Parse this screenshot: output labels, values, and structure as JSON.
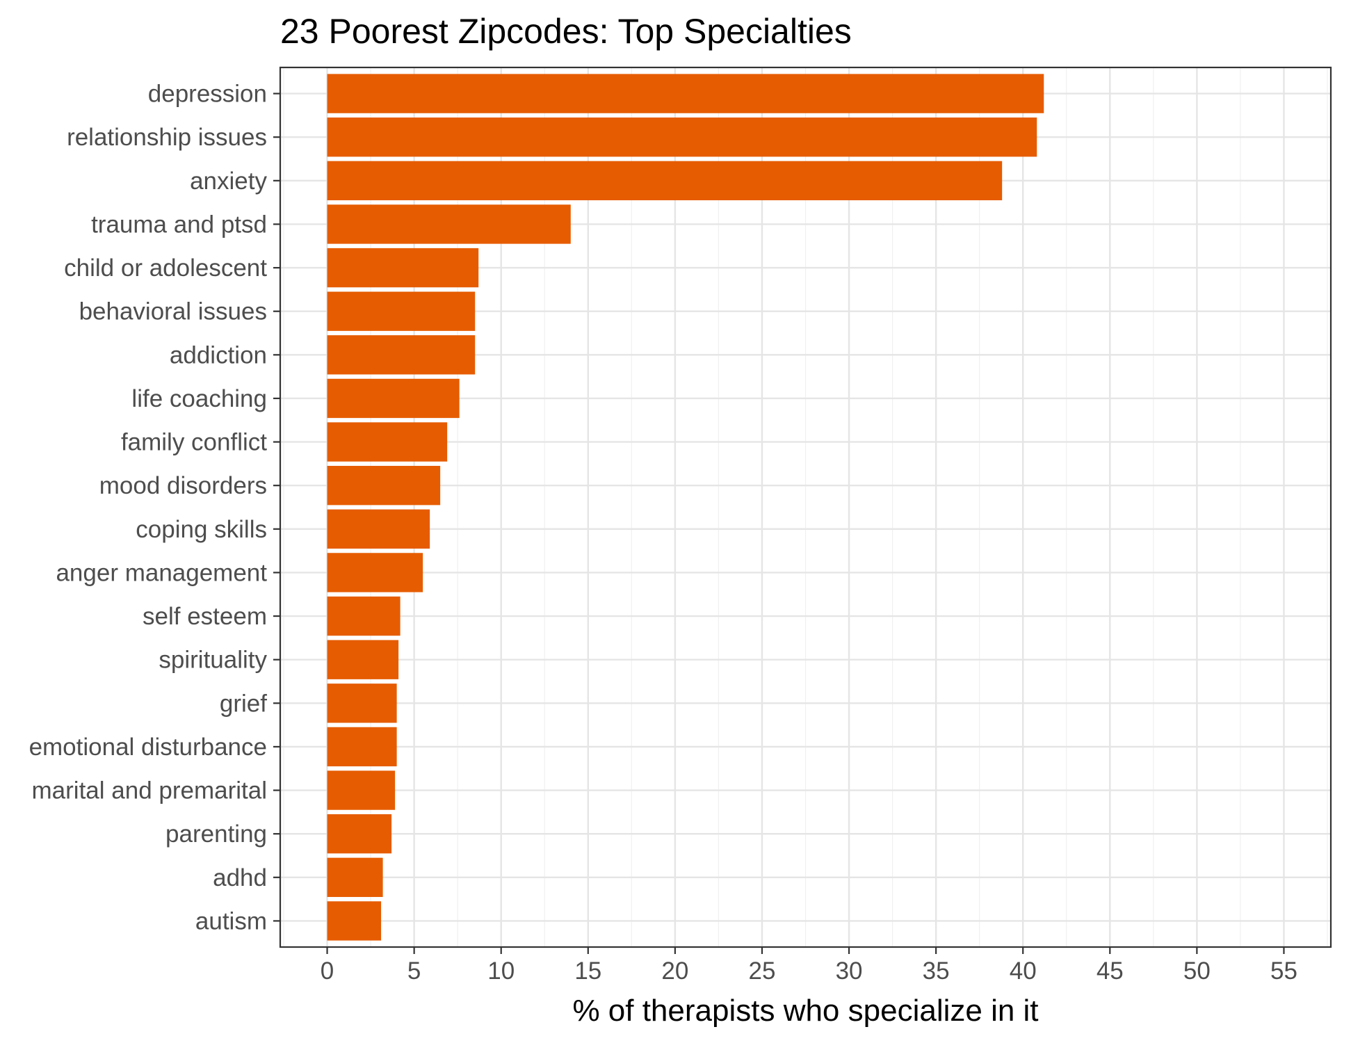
{
  "chart_data": {
    "type": "bar",
    "orientation": "horizontal",
    "title": "23 Poorest Zipcodes: Top Specialties",
    "xlabel": "% of therapists who specialize in it",
    "ylabel": "",
    "xlim": [
      -2.7,
      57.7
    ],
    "x_ticks": [
      0,
      5,
      10,
      15,
      20,
      25,
      30,
      35,
      40,
      45,
      50,
      55
    ],
    "grid": true,
    "bar_color": "#e65c00",
    "categories": [
      "depression",
      "relationship issues",
      "anxiety",
      "trauma and ptsd",
      "child or adolescent",
      "behavioral issues",
      "addiction",
      "life coaching",
      "family conflict",
      "mood disorders",
      "coping skills",
      "anger management",
      "self esteem",
      "spirituality",
      "grief",
      "emotional disturbance",
      "marital and premarital",
      "parenting",
      "adhd",
      "autism"
    ],
    "values": [
      41.2,
      40.8,
      38.8,
      14.0,
      8.7,
      8.5,
      8.5,
      7.6,
      6.9,
      6.5,
      5.9,
      5.5,
      4.2,
      4.1,
      4.0,
      4.0,
      3.9,
      3.7,
      3.2,
      3.1
    ]
  }
}
